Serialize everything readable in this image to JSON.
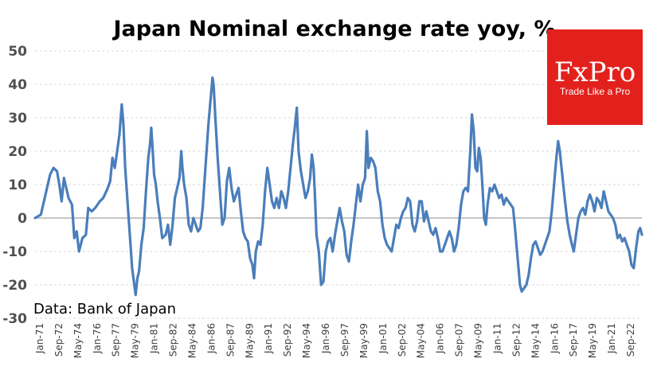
{
  "chart_data": {
    "type": "line",
    "title": "Japan Nominal exchange rate yoy, %",
    "xlabel": "",
    "ylabel": "",
    "ylim": [
      -30,
      50
    ],
    "yticks": [
      -30,
      -20,
      -10,
      0,
      10,
      20,
      30,
      40,
      50
    ],
    "grid": true,
    "tick_labels": [
      "Jan-71",
      "Sep-72",
      "May-74",
      "Jan-76",
      "Sep-77",
      "May-79",
      "Jan-81",
      "Sep-82",
      "May-84",
      "Jan-86",
      "Sep-87",
      "May-89",
      "Jan-91",
      "Sep-92",
      "May-94",
      "Jan-96",
      "Sep-97",
      "May-99",
      "Jan-01",
      "Sep-02",
      "May-04",
      "Jan-06",
      "Sep-07",
      "May-09",
      "Jan-11",
      "Sep-12",
      "May-14",
      "Jan-16",
      "Sep-17",
      "May-19",
      "Jan-21",
      "Sep-22"
    ],
    "series": [
      {
        "name": "Japan Nominal exchange rate yoy, %",
        "color": "#4a7ebb",
        "points": [
          [
            1971.0,
            0
          ],
          [
            1971.5,
            1
          ],
          [
            1971.9,
            7
          ],
          [
            1972.3,
            13
          ],
          [
            1972.6,
            15
          ],
          [
            1972.9,
            14
          ],
          [
            1973.1,
            10
          ],
          [
            1973.3,
            5
          ],
          [
            1973.5,
            12
          ],
          [
            1973.7,
            9
          ],
          [
            1973.9,
            6
          ],
          [
            1974.2,
            4
          ],
          [
            1974.4,
            -6
          ],
          [
            1974.6,
            -4
          ],
          [
            1974.8,
            -10
          ],
          [
            1975.1,
            -6
          ],
          [
            1975.4,
            -5
          ],
          [
            1975.6,
            3
          ],
          [
            1975.9,
            2
          ],
          [
            1976.2,
            3
          ],
          [
            1976.6,
            5
          ],
          [
            1976.9,
            6
          ],
          [
            1977.3,
            9
          ],
          [
            1977.5,
            11
          ],
          [
            1977.7,
            18
          ],
          [
            1977.9,
            15
          ],
          [
            1978.1,
            20
          ],
          [
            1978.3,
            25
          ],
          [
            1978.5,
            34
          ],
          [
            1978.65,
            28
          ],
          [
            1978.8,
            15
          ],
          [
            1979.0,
            5
          ],
          [
            1979.2,
            -5
          ],
          [
            1979.4,
            -15
          ],
          [
            1979.55,
            -19
          ],
          [
            1979.7,
            -23
          ],
          [
            1979.85,
            -18
          ],
          [
            1980.0,
            -16
          ],
          [
            1980.2,
            -8
          ],
          [
            1980.4,
            -3
          ],
          [
            1980.6,
            8
          ],
          [
            1980.8,
            18
          ],
          [
            1980.95,
            22
          ],
          [
            1981.05,
            27
          ],
          [
            1981.15,
            22
          ],
          [
            1981.3,
            13
          ],
          [
            1981.45,
            10
          ],
          [
            1981.6,
            5
          ],
          [
            1981.8,
            0
          ],
          [
            1982.0,
            -6
          ],
          [
            1982.3,
            -5
          ],
          [
            1982.5,
            -2
          ],
          [
            1982.7,
            -8
          ],
          [
            1982.9,
            -2
          ],
          [
            1983.1,
            6
          ],
          [
            1983.3,
            9
          ],
          [
            1983.5,
            12
          ],
          [
            1983.65,
            20
          ],
          [
            1983.75,
            15
          ],
          [
            1983.9,
            10
          ],
          [
            1984.1,
            6
          ],
          [
            1984.3,
            -2
          ],
          [
            1984.5,
            -4
          ],
          [
            1984.7,
            0
          ],
          [
            1984.9,
            -2
          ],
          [
            1985.1,
            -4
          ],
          [
            1985.3,
            -3
          ],
          [
            1985.5,
            3
          ],
          [
            1985.8,
            18
          ],
          [
            1986.0,
            28
          ],
          [
            1986.2,
            36
          ],
          [
            1986.35,
            42
          ],
          [
            1986.45,
            40
          ],
          [
            1986.6,
            30
          ],
          [
            1986.8,
            18
          ],
          [
            1987.0,
            8
          ],
          [
            1987.2,
            -2
          ],
          [
            1987.4,
            0
          ],
          [
            1987.6,
            11
          ],
          [
            1987.8,
            15
          ],
          [
            1988.0,
            9
          ],
          [
            1988.2,
            5
          ],
          [
            1988.4,
            7
          ],
          [
            1988.6,
            9
          ],
          [
            1988.8,
            2
          ],
          [
            1989.0,
            -4
          ],
          [
            1989.2,
            -6
          ],
          [
            1989.4,
            -7
          ],
          [
            1989.6,
            -12
          ],
          [
            1989.8,
            -14
          ],
          [
            1989.95,
            -18
          ],
          [
            1990.1,
            -10
          ],
          [
            1990.3,
            -7
          ],
          [
            1990.5,
            -8
          ],
          [
            1990.7,
            -2
          ],
          [
            1990.9,
            8
          ],
          [
            1991.1,
            15
          ],
          [
            1991.3,
            10
          ],
          [
            1991.5,
            5
          ],
          [
            1991.7,
            3
          ],
          [
            1991.9,
            6
          ],
          [
            1992.1,
            3
          ],
          [
            1992.3,
            8
          ],
          [
            1992.5,
            6
          ],
          [
            1992.7,
            3
          ],
          [
            1992.9,
            8
          ],
          [
            1993.1,
            15
          ],
          [
            1993.3,
            22
          ],
          [
            1993.5,
            28
          ],
          [
            1993.65,
            33
          ],
          [
            1993.8,
            20
          ],
          [
            1994.0,
            14
          ],
          [
            1994.2,
            10
          ],
          [
            1994.4,
            6
          ],
          [
            1994.6,
            8
          ],
          [
            1994.8,
            12
          ],
          [
            1994.95,
            19
          ],
          [
            1995.1,
            15
          ],
          [
            1995.2,
            8
          ],
          [
            1995.35,
            -5
          ],
          [
            1995.55,
            -10
          ],
          [
            1995.75,
            -20
          ],
          [
            1995.95,
            -19
          ],
          [
            1996.15,
            -10
          ],
          [
            1996.35,
            -7
          ],
          [
            1996.55,
            -6
          ],
          [
            1996.75,
            -10
          ],
          [
            1996.95,
            -5
          ],
          [
            1997.15,
            -1
          ],
          [
            1997.35,
            3
          ],
          [
            1997.55,
            -1
          ],
          [
            1997.75,
            -4
          ],
          [
            1997.95,
            -11
          ],
          [
            1998.15,
            -13
          ],
          [
            1998.35,
            -7
          ],
          [
            1998.55,
            -2
          ],
          [
            1998.75,
            4
          ],
          [
            1998.95,
            10
          ],
          [
            1999.15,
            5
          ],
          [
            1999.35,
            10
          ],
          [
            1999.55,
            12
          ],
          [
            1999.7,
            26
          ],
          [
            1999.85,
            15
          ],
          [
            2000.05,
            18
          ],
          [
            2000.25,
            17
          ],
          [
            2000.45,
            15
          ],
          [
            2000.65,
            8
          ],
          [
            2000.85,
            5
          ],
          [
            2001.05,
            -2
          ],
          [
            2001.25,
            -6
          ],
          [
            2001.45,
            -8
          ],
          [
            2001.65,
            -9
          ],
          [
            2001.85,
            -10
          ],
          [
            2002.05,
            -6
          ],
          [
            2002.25,
            -2
          ],
          [
            2002.45,
            -3
          ],
          [
            2002.65,
            0
          ],
          [
            2002.85,
            2
          ],
          [
            2003.05,
            3
          ],
          [
            2003.25,
            6
          ],
          [
            2003.45,
            5
          ],
          [
            2003.65,
            -2
          ],
          [
            2003.85,
            -4
          ],
          [
            2004.05,
            -1
          ],
          [
            2004.25,
            5
          ],
          [
            2004.45,
            5
          ],
          [
            2004.65,
            -1
          ],
          [
            2004.85,
            2
          ],
          [
            2005.05,
            -1
          ],
          [
            2005.25,
            -4
          ],
          [
            2005.45,
            -5
          ],
          [
            2005.65,
            -3
          ],
          [
            2005.85,
            -6
          ],
          [
            2006.05,
            -10
          ],
          [
            2006.25,
            -10
          ],
          [
            2006.45,
            -8
          ],
          [
            2006.65,
            -6
          ],
          [
            2006.85,
            -4
          ],
          [
            2007.05,
            -6
          ],
          [
            2007.25,
            -10
          ],
          [
            2007.45,
            -8
          ],
          [
            2007.65,
            -3
          ],
          [
            2007.85,
            4
          ],
          [
            2008.05,
            8
          ],
          [
            2008.25,
            9
          ],
          [
            2008.45,
            8
          ],
          [
            2008.65,
            20
          ],
          [
            2008.8,
            31
          ],
          [
            2008.95,
            26
          ],
          [
            2009.1,
            15
          ],
          [
            2009.25,
            14
          ],
          [
            2009.4,
            21
          ],
          [
            2009.55,
            18
          ],
          [
            2009.7,
            10
          ],
          [
            2009.85,
            0
          ],
          [
            2010.0,
            -2
          ],
          [
            2010.15,
            4
          ],
          [
            2010.35,
            9
          ],
          [
            2010.55,
            8
          ],
          [
            2010.75,
            10
          ],
          [
            2010.95,
            8
          ],
          [
            2011.15,
            6
          ],
          [
            2011.35,
            7
          ],
          [
            2011.55,
            4
          ],
          [
            2011.75,
            6
          ],
          [
            2011.95,
            5
          ],
          [
            2012.15,
            4
          ],
          [
            2012.35,
            3
          ],
          [
            2012.5,
            -2
          ],
          [
            2012.65,
            -8
          ],
          [
            2012.8,
            -14
          ],
          [
            2012.95,
            -20
          ],
          [
            2013.1,
            -22
          ],
          [
            2013.3,
            -21
          ],
          [
            2013.5,
            -20
          ],
          [
            2013.7,
            -17
          ],
          [
            2013.9,
            -12
          ],
          [
            2014.1,
            -8
          ],
          [
            2014.3,
            -7
          ],
          [
            2014.5,
            -9
          ],
          [
            2014.7,
            -11
          ],
          [
            2014.9,
            -10
          ],
          [
            2015.1,
            -8
          ],
          [
            2015.3,
            -6
          ],
          [
            2015.5,
            -4
          ],
          [
            2015.7,
            2
          ],
          [
            2015.9,
            10
          ],
          [
            2016.1,
            18
          ],
          [
            2016.25,
            23
          ],
          [
            2016.4,
            20
          ],
          [
            2016.55,
            15
          ],
          [
            2016.7,
            10
          ],
          [
            2016.85,
            5
          ],
          [
            2017.05,
            -1
          ],
          [
            2017.25,
            -5
          ],
          [
            2017.45,
            -8
          ],
          [
            2017.6,
            -10
          ],
          [
            2017.8,
            -5
          ],
          [
            2018.0,
            0
          ],
          [
            2018.2,
            2
          ],
          [
            2018.4,
            3
          ],
          [
            2018.6,
            1
          ],
          [
            2018.8,
            5
          ],
          [
            2019.0,
            7
          ],
          [
            2019.2,
            5
          ],
          [
            2019.4,
            2
          ],
          [
            2019.6,
            6
          ],
          [
            2019.8,
            5
          ],
          [
            2020.0,
            3
          ],
          [
            2020.2,
            8
          ],
          [
            2020.4,
            5
          ],
          [
            2020.6,
            2
          ],
          [
            2020.8,
            1
          ],
          [
            2021.0,
            0
          ],
          [
            2021.2,
            -2
          ],
          [
            2021.4,
            -6
          ],
          [
            2021.6,
            -5
          ],
          [
            2021.8,
            -7
          ],
          [
            2022.0,
            -6
          ],
          [
            2022.2,
            -8
          ],
          [
            2022.4,
            -10
          ],
          [
            2022.6,
            -14
          ],
          [
            2022.8,
            -15
          ],
          [
            2023.0,
            -9
          ],
          [
            2023.2,
            -4
          ],
          [
            2023.35,
            -3
          ],
          [
            2023.5,
            -5
          ]
        ]
      }
    ]
  },
  "source_note": "Data: Bank of Japan",
  "logo": {
    "name": "FxPro",
    "tagline": "Trade Like a Pro",
    "bg_color": "#e3211c"
  }
}
